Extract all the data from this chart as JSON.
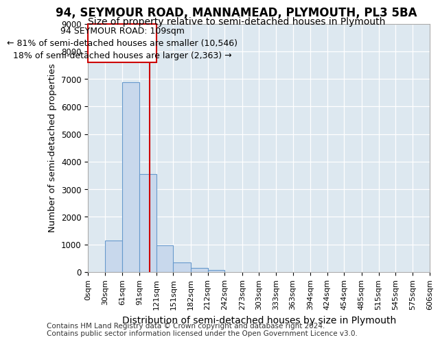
{
  "title": "94, SEYMOUR ROAD, MANNAMEAD, PLYMOUTH, PL3 5BA",
  "subtitle": "Size of property relative to semi-detached houses in Plymouth",
  "xlabel": "Distribution of semi-detached houses by size in Plymouth",
  "ylabel": "Number of semi-detached properties",
  "footnote1": "Contains HM Land Registry data © Crown copyright and database right 2024.",
  "footnote2": "Contains public sector information licensed under the Open Government Licence v3.0.",
  "annotation_title": "94 SEYMOUR ROAD: 109sqm",
  "annotation_line1": "← 81% of semi-detached houses are smaller (10,546)",
  "annotation_line2": "18% of semi-detached houses are larger (2,363) →",
  "bin_edges": [
    0,
    30,
    61,
    91,
    121,
    151,
    182,
    212,
    242,
    273,
    303,
    333,
    363,
    394,
    424,
    454,
    485,
    515,
    545,
    575,
    606
  ],
  "bar_heights": [
    0,
    1130,
    6870,
    3560,
    970,
    350,
    155,
    80,
    0,
    0,
    0,
    0,
    0,
    0,
    0,
    0,
    0,
    0,
    0,
    0
  ],
  "ylim": [
    0,
    9000
  ],
  "yticks": [
    0,
    1000,
    2000,
    3000,
    4000,
    5000,
    6000,
    7000,
    8000,
    9000
  ],
  "xtick_labels": [
    "0sqm",
    "30sqm",
    "61sqm",
    "91sqm",
    "121sqm",
    "151sqm",
    "182sqm",
    "212sqm",
    "242sqm",
    "273sqm",
    "303sqm",
    "333sqm",
    "363sqm",
    "394sqm",
    "424sqm",
    "454sqm",
    "485sqm",
    "515sqm",
    "545sqm",
    "575sqm",
    "606sqm"
  ],
  "bar_color": "#c8d8ec",
  "bar_edge_color": "#6699cc",
  "vline_color": "#cc0000",
  "vline_x": 109,
  "annotation_box_color": "#cc0000",
  "plot_bg_color": "#dde8f0",
  "fig_bg_color": "#ffffff",
  "grid_color": "#ffffff",
  "title_fontsize": 12,
  "subtitle_fontsize": 10,
  "axis_label_fontsize": 9.5,
  "tick_fontsize": 8,
  "annotation_fontsize": 9,
  "footnote_fontsize": 7.5
}
